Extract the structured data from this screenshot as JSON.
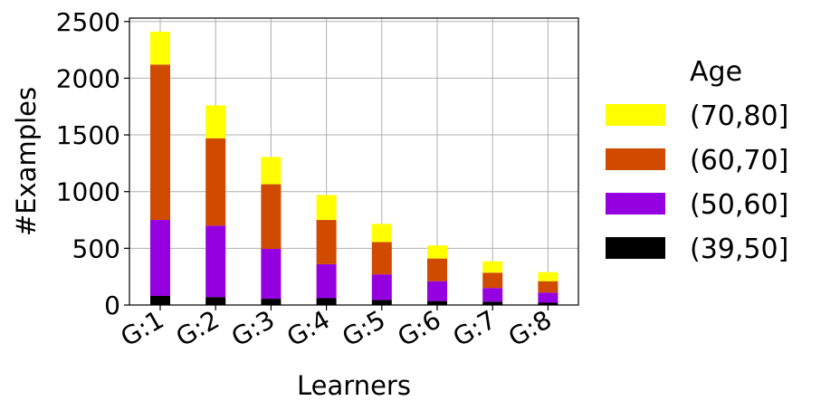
{
  "chart_data": {
    "type": "bar",
    "stacked": true,
    "title": "",
    "xlabel": "Learners",
    "ylabel": "#Examples",
    "categories": [
      "G:1",
      "G:2",
      "G:3",
      "G:4",
      "G:5",
      "G:6",
      "G:7",
      "G:8"
    ],
    "ylim": [
      0,
      2530
    ],
    "yticks": [
      0,
      500,
      1000,
      1500,
      2000,
      2500
    ],
    "grid": true,
    "legend": {
      "title": "Age",
      "placement": "right"
    },
    "series": [
      {
        "name": "(39,50]",
        "color": "#000000",
        "values": [
          80,
          70,
          55,
          60,
          45,
          35,
          30,
          20
        ]
      },
      {
        "name": "(50,60]",
        "color": "#9400e0",
        "values": [
          670,
          630,
          440,
          300,
          225,
          175,
          120,
          90
        ]
      },
      {
        "name": "(60,70]",
        "color": "#d04a00",
        "values": [
          1370,
          770,
          570,
          390,
          285,
          200,
          135,
          100
        ]
      },
      {
        "name": "(70,80]",
        "color": "#ffff00",
        "values": [
          290,
          290,
          240,
          220,
          160,
          115,
          100,
          80
        ]
      }
    ]
  }
}
